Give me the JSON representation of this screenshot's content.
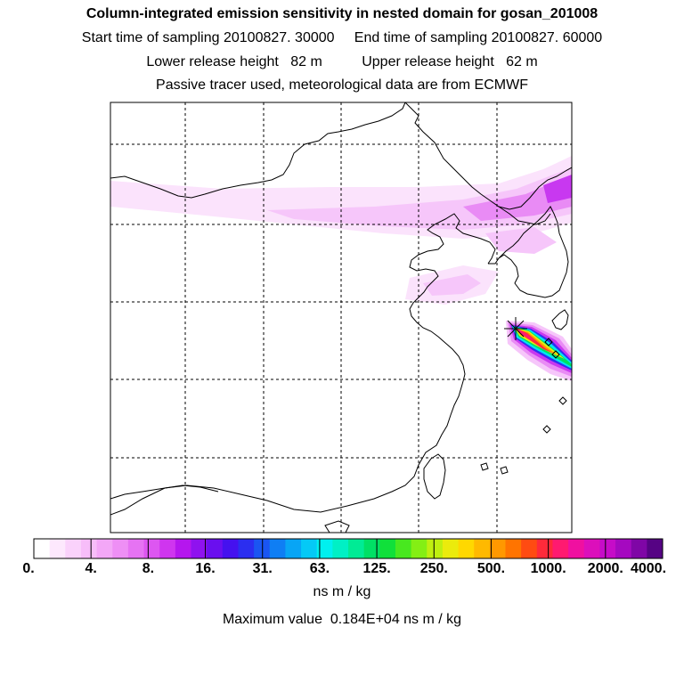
{
  "header": {
    "title": "Column-integrated emission sensitivity in nested domain for gosan_201008",
    "sampling": "Start time of sampling 20100827. 30000     End time of sampling 20100827. 60000",
    "heights": "Lower release height   82 m          Upper release height   62 m",
    "source": "Passive tracer used, meteorological data are from ECMWF"
  },
  "colorbar": {
    "colors": [
      "#ffffff",
      "#fde8fd",
      "#fad2fb",
      "#f7bdf9",
      "#f3a7f7",
      "#ee8ff5",
      "#e673f3",
      "#dd56f1",
      "#cf35ef",
      "#b516ee",
      "#8f12ef",
      "#6a0fef",
      "#4511ef",
      "#2b2ef0",
      "#1a55f2",
      "#0f7ef4",
      "#08a5f5",
      "#05c9f6",
      "#00f0ef",
      "#00f0c5",
      "#00eb95",
      "#00e065",
      "#10e03a",
      "#48e81f",
      "#84ef14",
      "#bfef10",
      "#ebeb0c",
      "#ffd800",
      "#ffb900",
      "#ff9800",
      "#ff7400",
      "#ff4b12",
      "#ff2a3a",
      "#ff1a70",
      "#f010a0",
      "#dc0fbb",
      "#c60cc8",
      "#a509c0",
      "#7f06a6",
      "#560384"
    ],
    "tick_labels": [
      "0.",
      "4.",
      "8.",
      "16.",
      "31.",
      "63.",
      "125.",
      "250.",
      "500.",
      "1000.",
      "2000.",
      "4000."
    ],
    "unit_label": "ns m / kg",
    "max_label": "Maximum value  0.184E+04 ns m / kg"
  },
  "map": {
    "receptor_marker_icon": "star-marker",
    "plume_colors": [
      "#f6c6fa",
      "#e98bf5",
      "#c838f0",
      "#2e2ff0",
      "#00e8f0",
      "#00e060",
      "#e8ec10",
      "#ff9800",
      "#ff2a3a",
      "#ff1a70"
    ]
  }
}
